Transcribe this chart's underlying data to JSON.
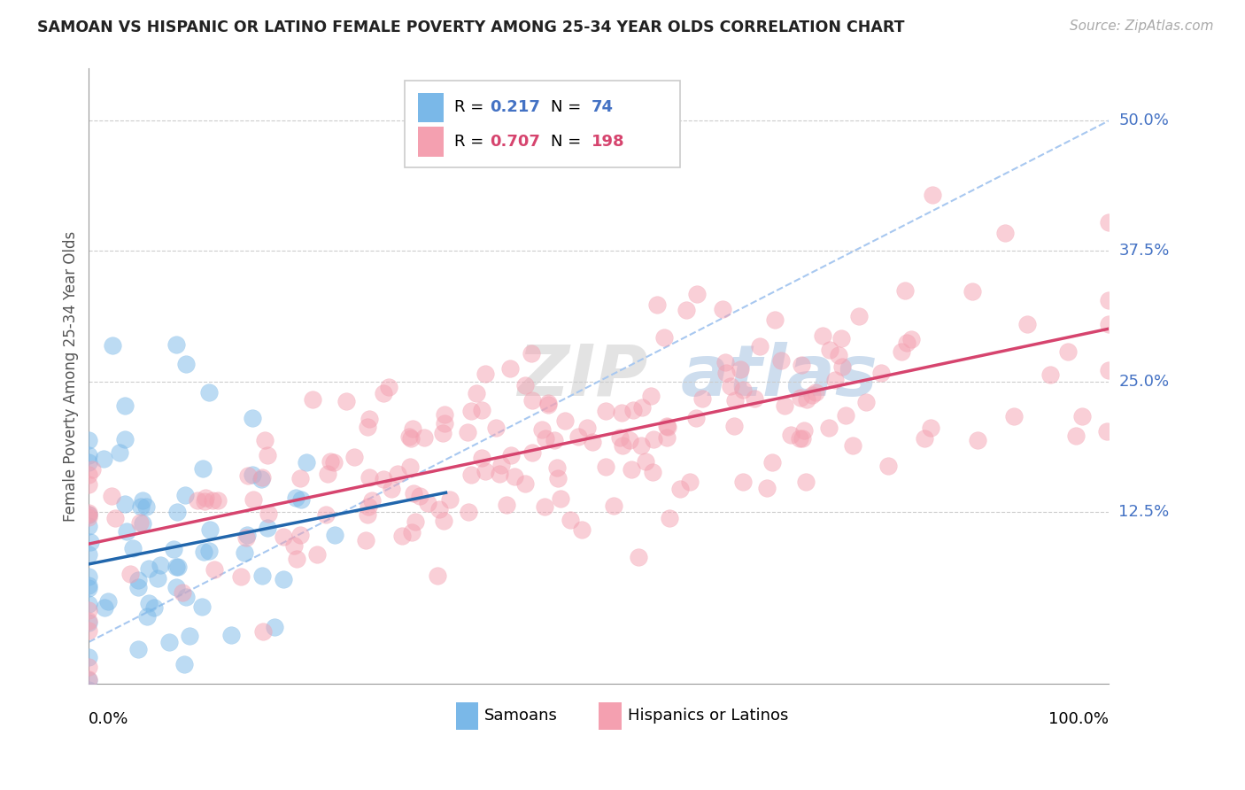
{
  "title": "SAMOAN VS HISPANIC OR LATINO FEMALE POVERTY AMONG 25-34 YEAR OLDS CORRELATION CHART",
  "source": "Source: ZipAtlas.com",
  "ylabel": "Female Poverty Among 25-34 Year Olds",
  "samoan_color": "#7ab8e8",
  "samoan_line_color": "#2166ac",
  "hispanic_color": "#f4a0b0",
  "hispanic_line_color": "#d6446e",
  "dash_line_color": "#a8c8f0",
  "samoan_R": 0.217,
  "samoan_N": 74,
  "hispanic_R": 0.707,
  "hispanic_N": 198,
  "watermark": "ZIPatlas",
  "background_color": "#ffffff",
  "grid_color": "#cccccc",
  "ytick_color": "#4472c4",
  "legend_R_color_samoan": "#4472c4",
  "legend_N_color_samoan": "#4472c4",
  "legend_R_color_hispanic": "#d6446e",
  "legend_N_color_hispanic": "#d6446e",
  "ylim_min": -0.04,
  "ylim_max": 0.55,
  "xlim_min": 0.0,
  "xlim_max": 1.0
}
